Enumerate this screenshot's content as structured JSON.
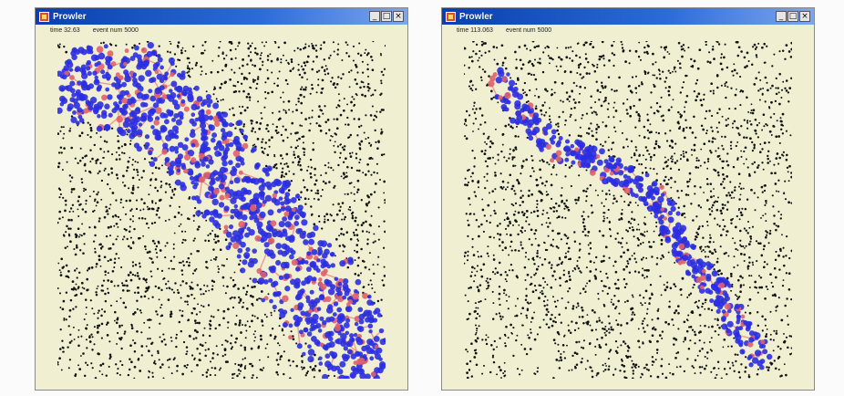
{
  "windows": [
    {
      "id": "left",
      "title": "Prowler",
      "buttons": {
        "minimize": "_",
        "maximize": "□",
        "close": "×"
      },
      "status": {
        "time": "time 32.63",
        "event": "event num 5000"
      },
      "blob": "wide-band"
    },
    {
      "id": "right",
      "title": "Prowler",
      "buttons": {
        "minimize": "_",
        "maximize": "□",
        "close": "×"
      },
      "status": {
        "time": "time 113.063",
        "event": "event num 5000"
      },
      "blob": "narrow-band"
    }
  ],
  "colors": {
    "window_bg": "#f1efd2",
    "titlebar": "#0a3fae",
    "background_dots": "#111111",
    "blue_nodes": "#2b2fe0",
    "red_links": "#f08a8a"
  }
}
